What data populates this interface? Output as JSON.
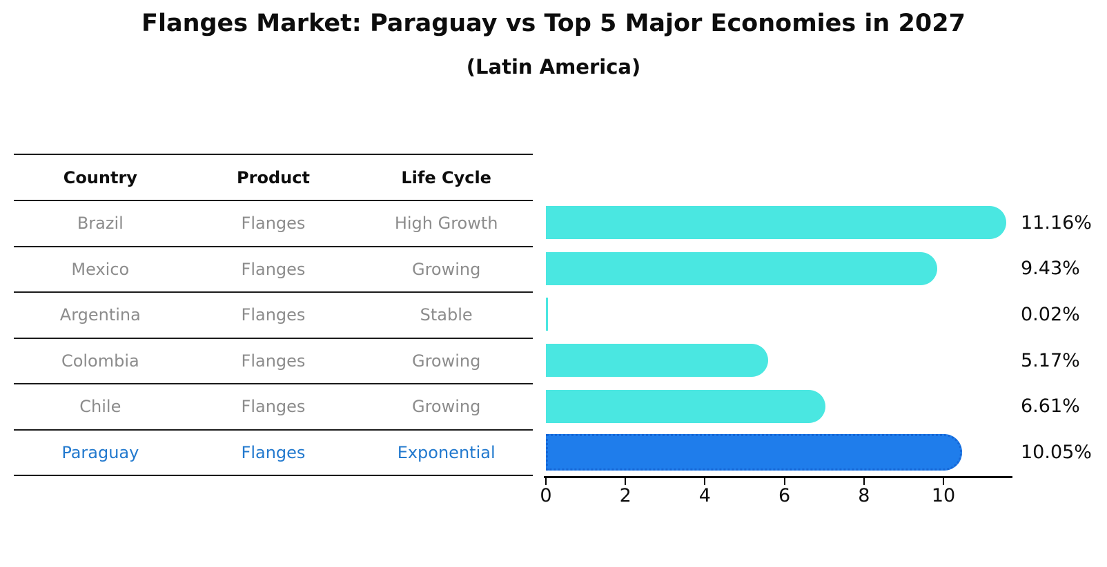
{
  "title": "Flanges Market: Paraguay vs Top 5 Major Economies in 2027",
  "subtitle": "(Latin America)",
  "table": {
    "headers": [
      "Country",
      "Product",
      "Life Cycle"
    ],
    "rows": [
      {
        "country": "Brazil",
        "product": "Flanges",
        "life_cycle": "High Growth"
      },
      {
        "country": "Mexico",
        "product": "Flanges",
        "life_cycle": "Growing"
      },
      {
        "country": "Argentina",
        "product": "Flanges",
        "life_cycle": "Stable"
      },
      {
        "country": "Colombia",
        "product": "Flanges",
        "life_cycle": "Growing"
      },
      {
        "country": "Chile",
        "product": "Flanges",
        "life_cycle": "Growing"
      },
      {
        "country": "Paraguay",
        "product": "Flanges",
        "life_cycle": "Exponential"
      }
    ],
    "highlight_row_index": 5
  },
  "chart_data": {
    "type": "bar",
    "orientation": "horizontal",
    "title": "Flanges Market: Paraguay vs Top 5 Major Economies in 2027 (Latin America)",
    "categories": [
      "Brazil",
      "Mexico",
      "Argentina",
      "Colombia",
      "Chile",
      "Paraguay"
    ],
    "values": [
      11.16,
      9.43,
      0.02,
      5.17,
      6.61,
      10.05
    ],
    "value_labels": [
      "11.16%",
      "9.43%",
      "0.02%",
      "5.17%",
      "6.61%",
      "10.05%"
    ],
    "xticks": [
      "0",
      "2",
      "4",
      "6",
      "8",
      "10"
    ],
    "xtick_values": [
      0,
      2,
      4,
      6,
      8,
      10
    ],
    "xlim": [
      0,
      11.74
    ],
    "grid": false,
    "legend": false,
    "highlight_index": 5,
    "colors": {
      "bar_default": "#4ae7e1",
      "bar_highlight": "#1f7deb",
      "bar_highlight_border": "#1566d6",
      "highlight_text": "#2279ce",
      "row_text": "#8c8c8c",
      "axis": "#000000",
      "value_label_text": "#0d0d0d"
    }
  }
}
